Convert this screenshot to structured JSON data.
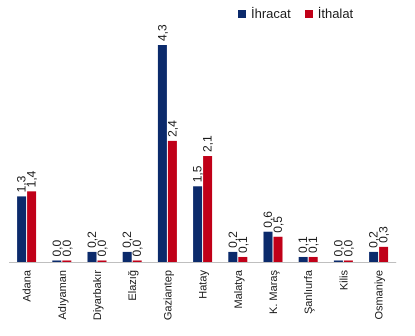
{
  "chart_data": {
    "type": "bar",
    "categories": [
      "Adana",
      "Adıyaman",
      "Diyarbakır",
      "Elazığ",
      "Gaziantep",
      "Hatay",
      "Malatya",
      "K. Maraş",
      "Şanlıurfa",
      "Kilis",
      "Osmaniye"
    ],
    "series": [
      {
        "name": "İhracat",
        "color": "#0b2a6b",
        "values": [
          1.3,
          0.0,
          0.2,
          0.2,
          4.3,
          1.5,
          0.2,
          0.6,
          0.1,
          0.0,
          0.2
        ],
        "labels": [
          "1,3",
          "0,0",
          "0,2",
          "0,2",
          "4,3",
          "1,5",
          "0,2",
          "0,6",
          "0,1",
          "0,0",
          "0,2"
        ]
      },
      {
        "name": "İthalat",
        "color": "#c00018",
        "values": [
          1.4,
          0.0,
          0.0,
          0.0,
          2.4,
          2.1,
          0.1,
          0.5,
          0.1,
          0.0,
          0.3
        ],
        "labels": [
          "1,4",
          "0,0",
          "0,0",
          "0,0",
          "2,4",
          "2,1",
          "0,1",
          "0,5",
          "0,1",
          "0,0",
          "0,3"
        ]
      }
    ],
    "ylim": [
      0,
      4.3
    ],
    "grid": false,
    "legend_position": "top-right"
  }
}
